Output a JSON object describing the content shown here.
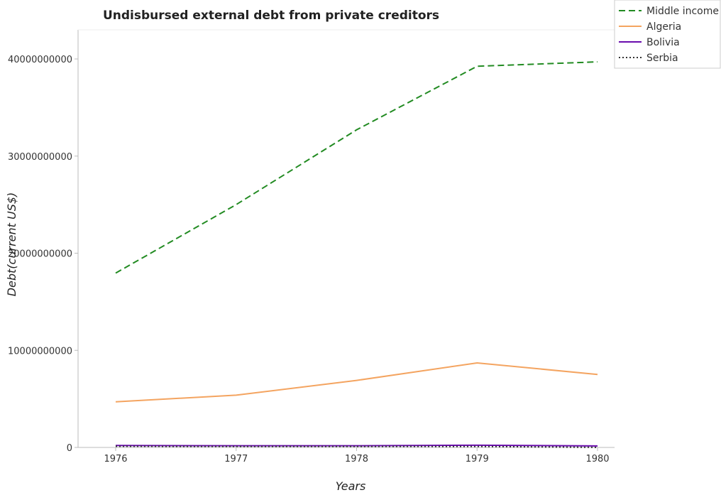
{
  "chart_data": {
    "type": "line",
    "title": "Undisbursed external debt from private creditors",
    "xlabel": "Years",
    "ylabel": "Debt(current US$)",
    "x": [
      "1976",
      "1977",
      "1978",
      "1979",
      "1980"
    ],
    "ylim": [
      0,
      43000000000
    ],
    "yticks": [
      0,
      10000000000,
      20000000000,
      30000000000,
      40000000000
    ],
    "ytick_labels": [
      "0",
      "10000000000",
      "20000000000",
      "30000000000",
      "40000000000"
    ],
    "grid": false,
    "legend_position": "top-right",
    "series": [
      {
        "name": "Middle income",
        "color": "#228b22",
        "dash": "dashed",
        "values": [
          17950000000,
          25000000000,
          32700000000,
          39250000000,
          39700000000
        ]
      },
      {
        "name": "Algeria",
        "color": "#f4a460",
        "dash": "solid",
        "values": [
          4700000000,
          5380000000,
          6900000000,
          8700000000,
          7520000000
        ]
      },
      {
        "name": "Bolivia",
        "color": "#6a0dad",
        "dash": "solid",
        "values": [
          200000000,
          175000000,
          175000000,
          230000000,
          150000000
        ]
      },
      {
        "name": "Serbia",
        "color": "#333333",
        "dash": "dotted",
        "values": [
          120000000,
          110000000,
          110000000,
          100000000,
          5000000
        ]
      }
    ]
  }
}
